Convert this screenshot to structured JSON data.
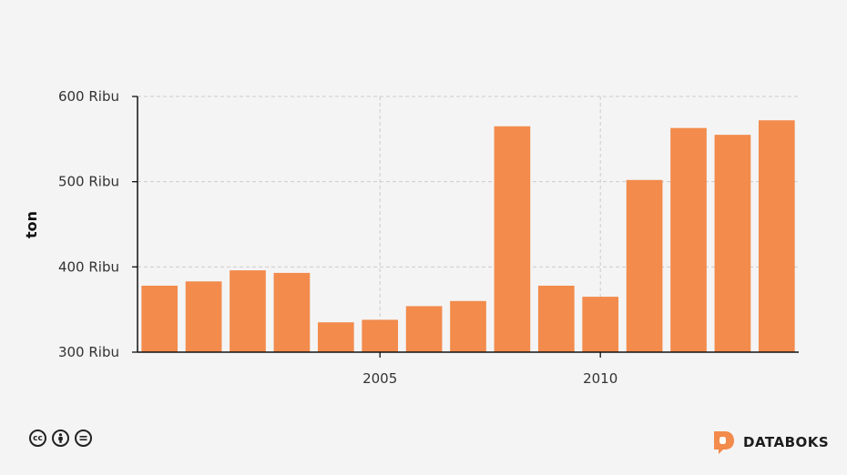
{
  "chart_data": {
    "type": "bar",
    "ylabel": "ton",
    "xlabel": "",
    "title": "",
    "x": [
      2000,
      2001,
      2002,
      2003,
      2004,
      2005,
      2006,
      2007,
      2008,
      2009,
      2010,
      2011,
      2012,
      2013,
      2014
    ],
    "values": [
      378000,
      383000,
      396000,
      393000,
      335000,
      338000,
      354000,
      360000,
      565000,
      378000,
      365000,
      502000,
      563000,
      555000,
      572000
    ],
    "ylim": [
      300000,
      600000
    ],
    "yticks": [
      {
        "value": 600000,
        "label": "600 Ribu"
      },
      {
        "value": 500000,
        "label": "500 Ribu"
      },
      {
        "value": 400000,
        "label": "400 Ribu"
      },
      {
        "value": 300000,
        "label": "300 Ribu"
      }
    ],
    "xticks": [
      {
        "value": 2005,
        "label": "2005"
      },
      {
        "value": 2010,
        "label": "2010"
      }
    ],
    "grid": true,
    "bar_color": "#f28b4c"
  },
  "footer": {
    "license_icons": [
      "cc-icon",
      "attribution-icon",
      "no-derivatives-icon"
    ],
    "brand": "DATABOKS",
    "brand_color": "#f28b4c"
  }
}
